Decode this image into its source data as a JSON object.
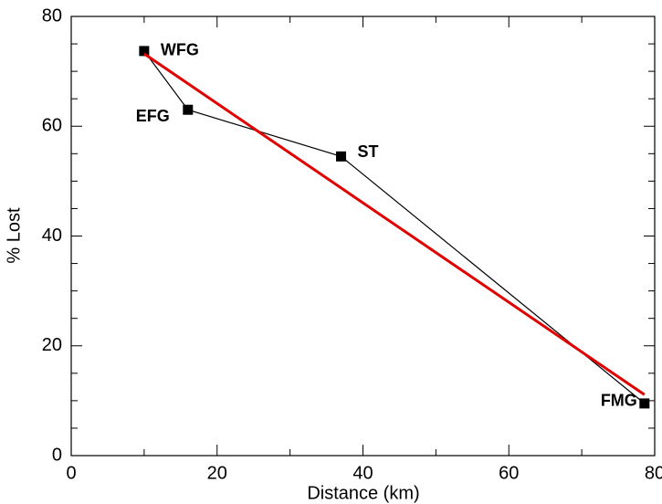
{
  "chart_data": {
    "type": "line",
    "x_label": "Distance (km)",
    "y_label": "% Lost",
    "xlim": [
      0,
      80
    ],
    "ylim": [
      0,
      80
    ],
    "xticks": [
      0,
      20,
      40,
      60,
      80
    ],
    "yticks": [
      0,
      20,
      40,
      60,
      80
    ],
    "x_minor_ticks": [
      10,
      30,
      50,
      70
    ],
    "y_minor_ticks": [
      5,
      10,
      15,
      25,
      30,
      35,
      45,
      50,
      55,
      65,
      70,
      75
    ],
    "series": [
      {
        "color": "#000000",
        "marker": "square",
        "x": [
          10,
          16,
          37,
          78.6
        ],
        "values": [
          73.7,
          63,
          54.5,
          9.5
        ],
        "point_labels": [
          "WFG",
          "EFG",
          "ST",
          "FMG"
        ]
      },
      {
        "color": "#e00000",
        "marker": "none",
        "x": [
          10,
          78.6
        ],
        "values": [
          73.2,
          11.1
        ]
      }
    ]
  }
}
